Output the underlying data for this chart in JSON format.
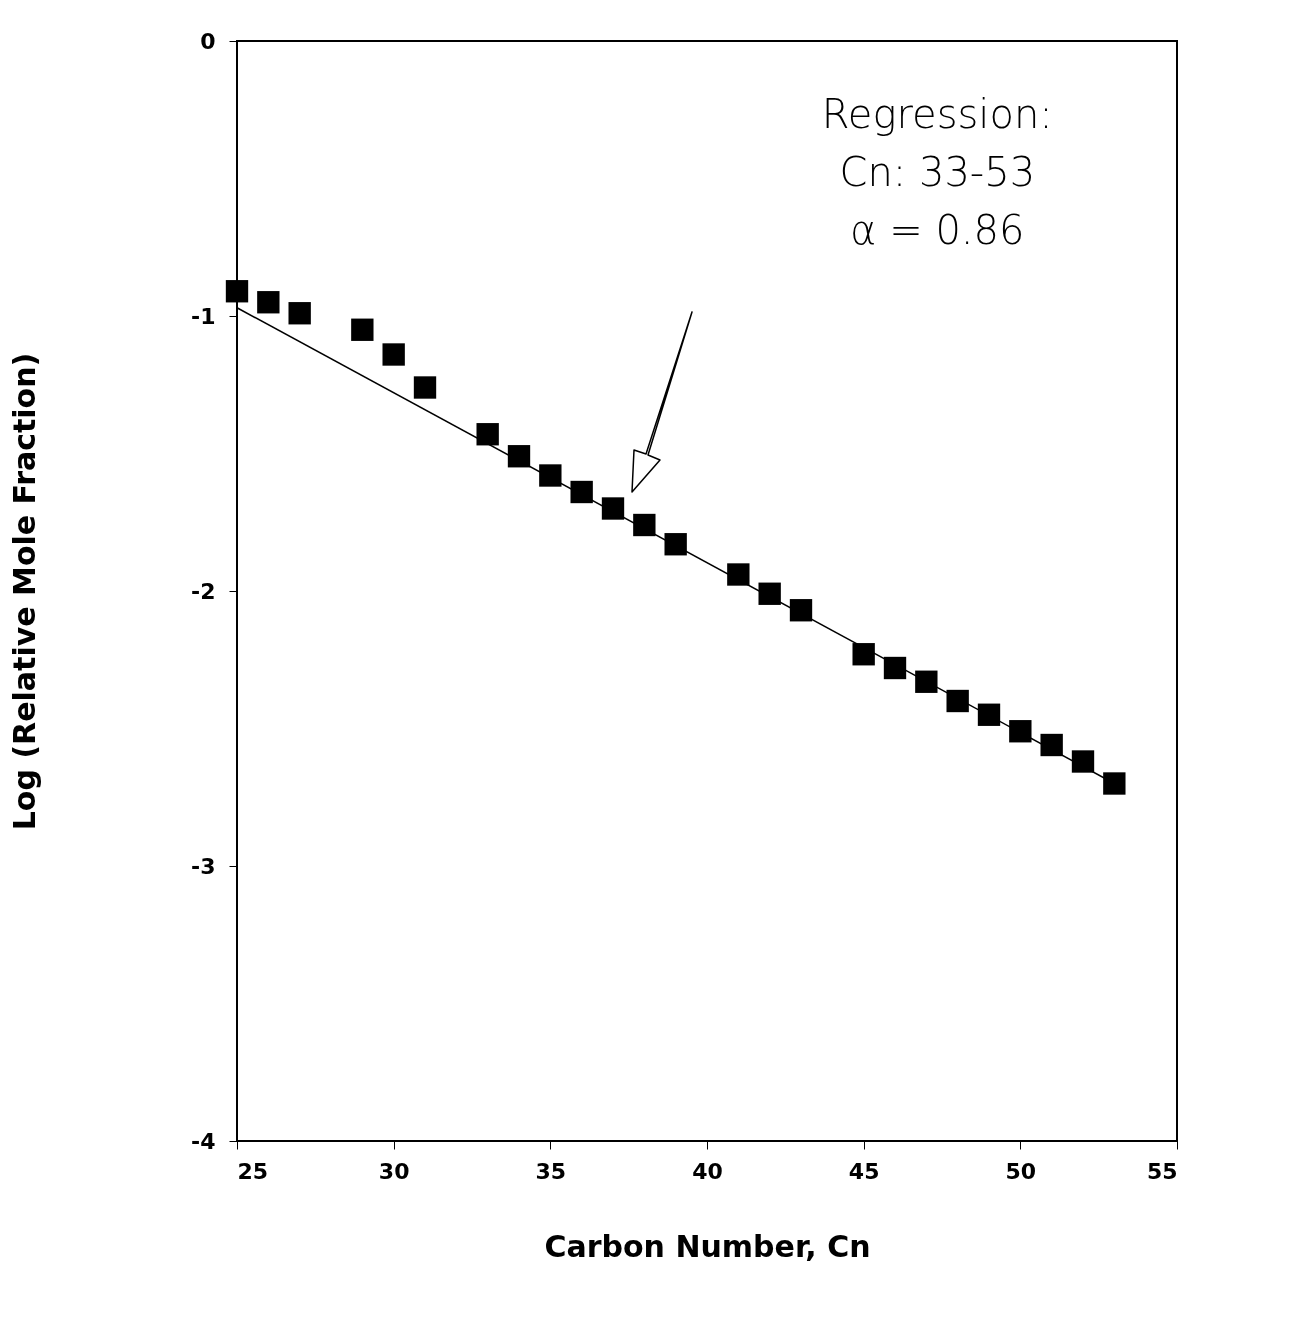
{
  "chart_data": {
    "type": "scatter",
    "xlabel": "Carbon Number, Cn",
    "ylabel": "Log (Relative Mole Fraction)",
    "xlim": [
      25,
      55
    ],
    "ylim": [
      -4,
      0
    ],
    "xticks": [
      25,
      30,
      35,
      40,
      45,
      50,
      55
    ],
    "yticks": [
      -4,
      -3,
      -2,
      -1,
      0
    ],
    "grid": false,
    "marker": "square",
    "annotations": [
      "Regression:",
      "Cn: 33-53",
      "α  = 0.86"
    ],
    "series": [
      {
        "color": "#000000",
        "x": [
          25,
          26,
          27,
          29,
          30,
          31,
          33,
          34,
          35,
          36,
          37,
          38,
          39,
          41,
          42,
          43,
          45,
          46,
          47,
          48,
          49,
          50,
          51,
          52,
          53
        ],
        "values": [
          -0.91,
          -0.95,
          -0.99,
          -1.05,
          -1.14,
          -1.26,
          -1.43,
          -1.51,
          -1.58,
          -1.64,
          -1.7,
          -1.76,
          -1.83,
          -1.94,
          -2.01,
          -2.07,
          -2.23,
          -2.28,
          -2.33,
          -2.4,
          -2.45,
          -2.51,
          -2.56,
          -2.62,
          -2.7
        ]
      },
      {
        "type": "line",
        "color": "#000000",
        "line_style": "solid",
        "marker": "none",
        "x": [
          25,
          53
        ],
        "values": [
          -0.97,
          -2.7
        ]
      }
    ]
  }
}
